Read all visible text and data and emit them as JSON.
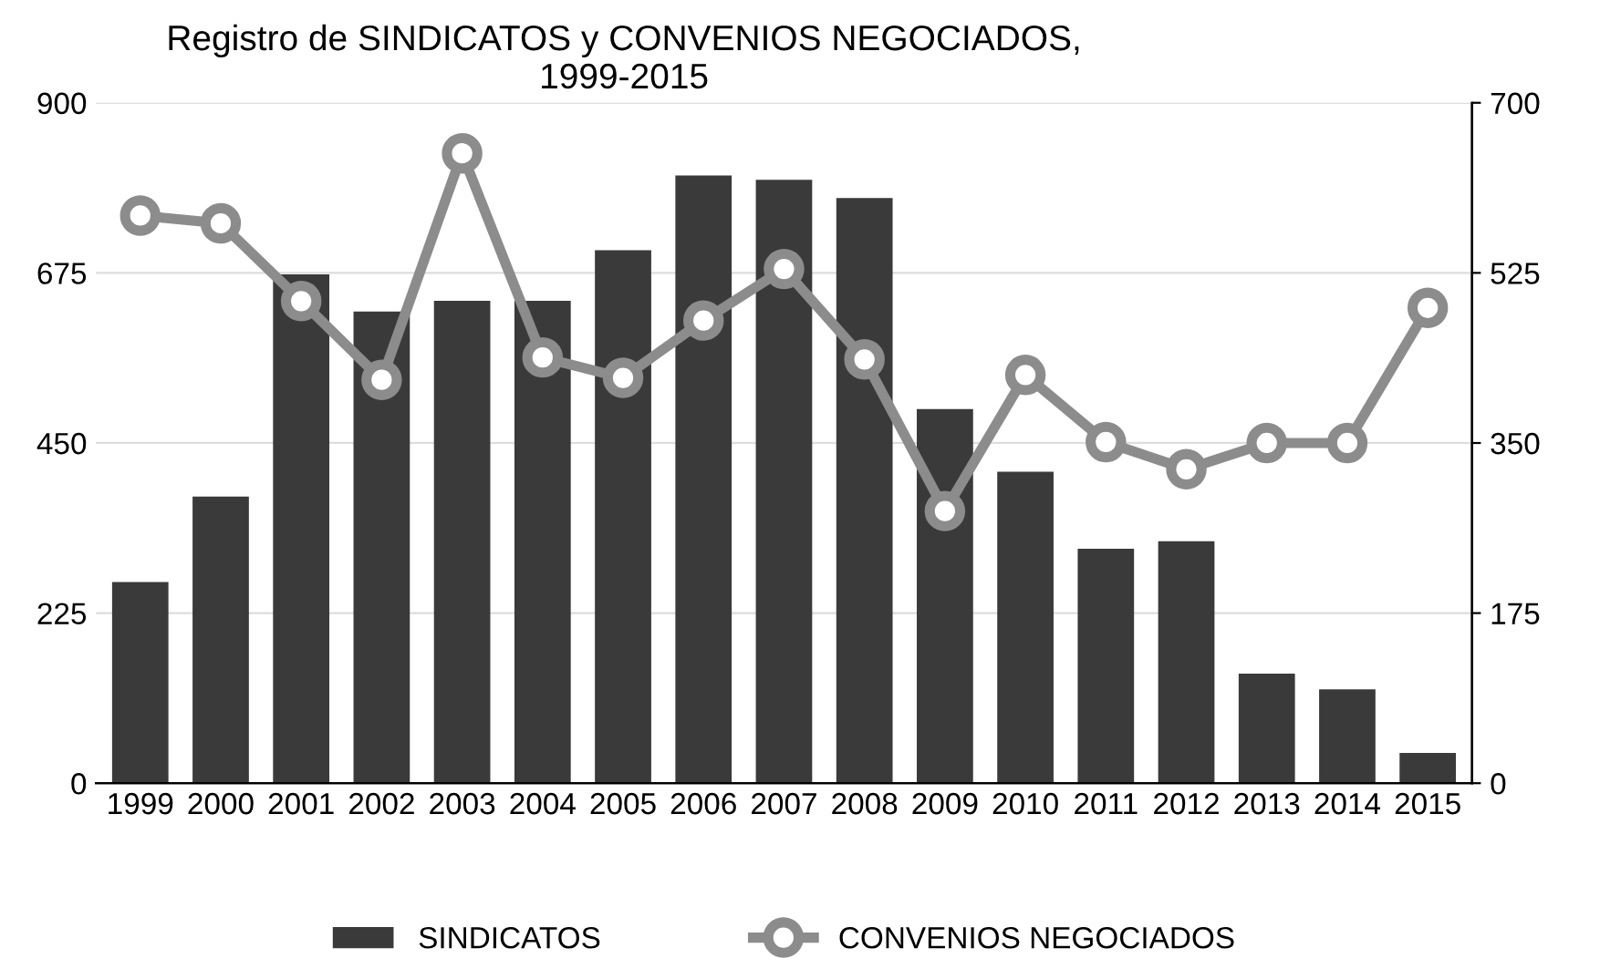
{
  "chart_data": {
    "type": "bar",
    "title": "Registro de SINDICATOS y CONVENIOS NEGOCIADOS,\n1999-2015",
    "categories": [
      "1999",
      "2000",
      "2001",
      "2002",
      "2003",
      "2004",
      "2005",
      "2006",
      "2007",
      "2008",
      "2009",
      "2010",
      "2011",
      "2012",
      "2013",
      "2014",
      "2015"
    ],
    "series": [
      {
        "name": "SINDICATOS",
        "color": "#3a3a3a",
        "values": [
          266,
          379,
          673,
          624,
          638,
          638,
          705,
          804,
          798,
          774,
          495,
          412,
          310,
          320,
          145,
          124,
          40
        ]
      },
      {
        "name": "CONVENIOS NEGOCIADOS",
        "type": "line",
        "axis": "y2",
        "color": "#8c8c8c",
        "marker": "circle",
        "values": [
          584,
          576,
          496,
          415,
          648,
          438,
          417,
          476,
          529,
          436,
          280,
          420,
          351,
          323,
          350,
          350,
          489
        ]
      }
    ],
    "ylim": [
      0,
      900
    ],
    "yticks": [
      0,
      225,
      450,
      675,
      900
    ],
    "y2lim": [
      0,
      700
    ],
    "y2ticks": [
      0,
      175,
      350,
      525,
      700
    ],
    "grid": "y",
    "legend": "bottom"
  }
}
